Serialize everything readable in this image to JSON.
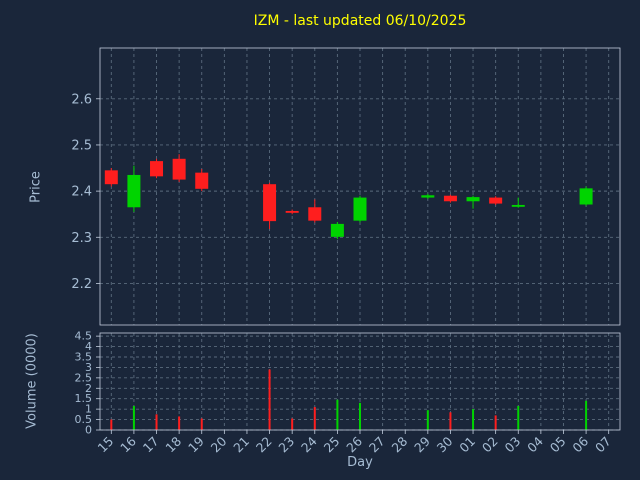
{
  "title": "IZM - last updated 06/10/2025",
  "colors": {
    "background": "#1a263a",
    "grid": "#5a6b7d",
    "frame": "#c3cede",
    "text": "#a6bcd3",
    "title": "#ffff00",
    "up": "#00d400",
    "down": "#ff1e1e"
  },
  "chart_data": [
    {
      "type": "candlestick",
      "title": "IZM - last updated 06/10/2025",
      "xlabel": "Day",
      "ylabel": "Price",
      "ylim": [
        2.11,
        2.71
      ],
      "grid": "dashed",
      "ytick_values": [
        2.2,
        2.3,
        2.4,
        2.5,
        2.6
      ],
      "ytick_labels": [
        "2.2",
        "2.3",
        "2.4",
        "2.5",
        "2.6"
      ],
      "categories": [
        "15",
        "16",
        "17",
        "18",
        "19",
        "20",
        "21",
        "22",
        "23",
        "24",
        "25",
        "26",
        "27",
        "28",
        "29",
        "30",
        "01",
        "02",
        "03",
        "04",
        "05",
        "06",
        "07"
      ],
      "candles": [
        {
          "open": 2.445,
          "high": 2.45,
          "low": 2.41,
          "close": 2.415
        },
        {
          "open": 2.365,
          "high": 2.455,
          "low": 2.355,
          "close": 2.435
        },
        {
          "open": 2.465,
          "high": 2.47,
          "low": 2.428,
          "close": 2.432
        },
        {
          "open": 2.47,
          "high": 2.48,
          "low": 2.42,
          "close": 2.425
        },
        {
          "open": 2.44,
          "high": 2.448,
          "low": 2.4,
          "close": 2.405
        },
        null,
        null,
        {
          "open": 2.415,
          "high": 2.418,
          "low": 2.318,
          "close": 2.335
        },
        {
          "open": 2.357,
          "high": 2.36,
          "low": 2.35,
          "close": 2.353
        },
        {
          "open": 2.365,
          "high": 2.382,
          "low": 2.332,
          "close": 2.336
        },
        {
          "open": 2.301,
          "high": 2.333,
          "low": 2.296,
          "close": 2.329
        },
        {
          "open": 2.336,
          "high": 2.39,
          "low": 2.332,
          "close": 2.386
        },
        null,
        null,
        {
          "open": 2.386,
          "high": 2.394,
          "low": 2.383,
          "close": 2.391
        },
        {
          "open": 2.39,
          "high": 2.392,
          "low": 2.375,
          "close": 2.378
        },
        {
          "open": 2.378,
          "high": 2.39,
          "low": 2.362,
          "close": 2.387
        },
        {
          "open": 2.386,
          "high": 2.389,
          "low": 2.37,
          "close": 2.373
        },
        {
          "open": 2.366,
          "high": 2.386,
          "low": 2.364,
          "close": 2.37
        },
        null,
        null,
        {
          "open": 2.371,
          "high": 2.41,
          "low": 2.368,
          "close": 2.406
        },
        null
      ]
    },
    {
      "type": "bar",
      "ylabel": "Volume (0000)",
      "ylim": [
        0,
        4.65
      ],
      "ytick_values": [
        0,
        0.5,
        1,
        1.5,
        2,
        2.5,
        3,
        3.5,
        4,
        4.5
      ],
      "ytick_labels": [
        "0",
        "0.5",
        "1",
        "1.5",
        "2",
        "2.5",
        "3",
        "3.5",
        "4",
        "4.5"
      ],
      "values": [
        0.5,
        1.15,
        0.75,
        0.65,
        0.55,
        null,
        null,
        2.9,
        0.55,
        1.1,
        1.45,
        1.3,
        null,
        null,
        0.95,
        0.85,
        1.0,
        0.7,
        1.15,
        null,
        null,
        1.4,
        null
      ]
    }
  ]
}
